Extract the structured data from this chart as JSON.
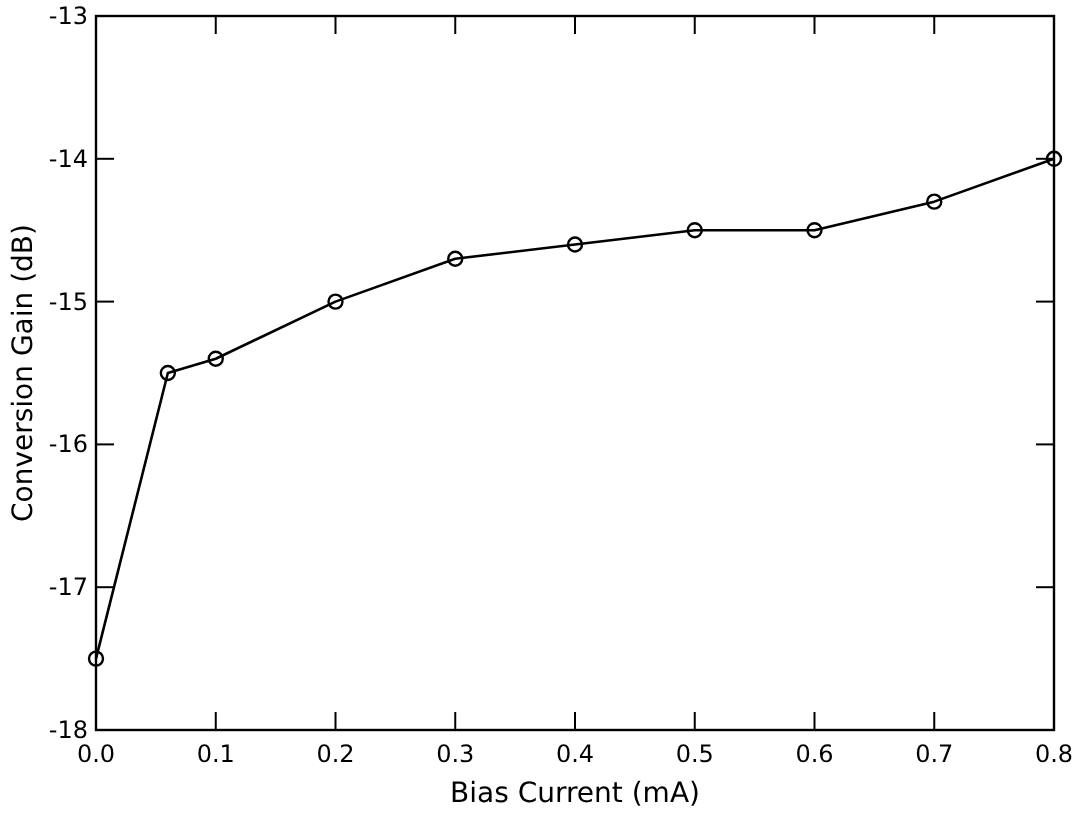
{
  "chart_data": {
    "type": "line",
    "xlabel": "Bias Current (mA)",
    "ylabel": "Conversion Gain (dB)",
    "x": [
      0.0,
      0.06,
      0.1,
      0.2,
      0.3,
      0.4,
      0.5,
      0.6,
      0.7,
      0.8
    ],
    "series": [
      {
        "color": "#000000",
        "values": [
          -17.5,
          -15.5,
          -15.4,
          -15.0,
          -14.7,
          -14.6,
          -14.5,
          -14.5,
          -14.3,
          -14.0
        ]
      }
    ],
    "xlim": [
      0,
      0.8
    ],
    "xticks": [
      {
        "value": 0,
        "label": "0.0"
      },
      {
        "value": 0.1,
        "label": "0.1"
      },
      {
        "value": 0.2,
        "label": "0.2"
      },
      {
        "value": 0.3,
        "label": "0.3"
      },
      {
        "value": 0.4,
        "label": "0.4"
      },
      {
        "value": 0.5,
        "label": "0.5"
      },
      {
        "value": 0.6,
        "label": "0.6"
      },
      {
        "value": 0.7,
        "label": "0.7"
      },
      {
        "value": 0.8,
        "label": "0.8"
      }
    ],
    "ylim": [
      -18,
      -13
    ],
    "yticks": [
      -18,
      -17,
      -16,
      -15,
      -14,
      -13
    ],
    "marker": "circle",
    "line_style": "solid"
  }
}
